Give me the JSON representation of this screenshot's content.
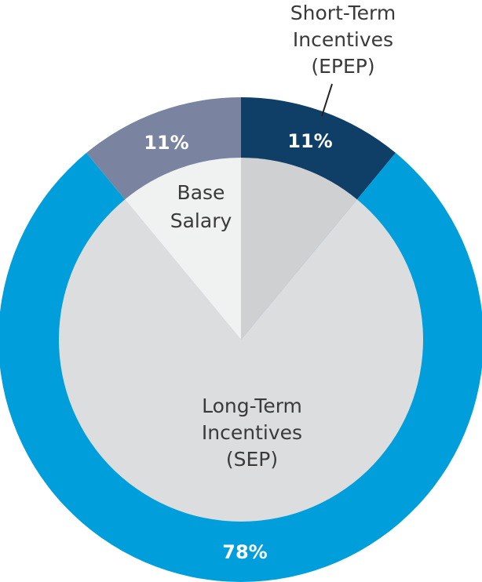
{
  "chart_data": {
    "type": "pie",
    "style": "donut",
    "segments": [
      {
        "name": "Short-Term Incentives (EPEP)",
        "label_lines": [
          "Short-Term",
          "Incentives",
          "(EPEP)"
        ],
        "value": 11,
        "value_label": "11%",
        "color": "#0f3f67",
        "inner_color": "#cfd0d2"
      },
      {
        "name": "Long-Term Incentives (SEP)",
        "label_lines": [
          "Long-Term",
          "Incentives",
          "(SEP)"
        ],
        "value": 78,
        "value_label": "78%",
        "color": "#009fdc",
        "inner_color": "#dcdddf"
      },
      {
        "name": "Base Salary",
        "label_lines": [
          "Base",
          "Salary"
        ],
        "value": 11,
        "value_label": "11%",
        "color": "#7a84a0",
        "inner_color": "#f0f1f1"
      }
    ]
  }
}
